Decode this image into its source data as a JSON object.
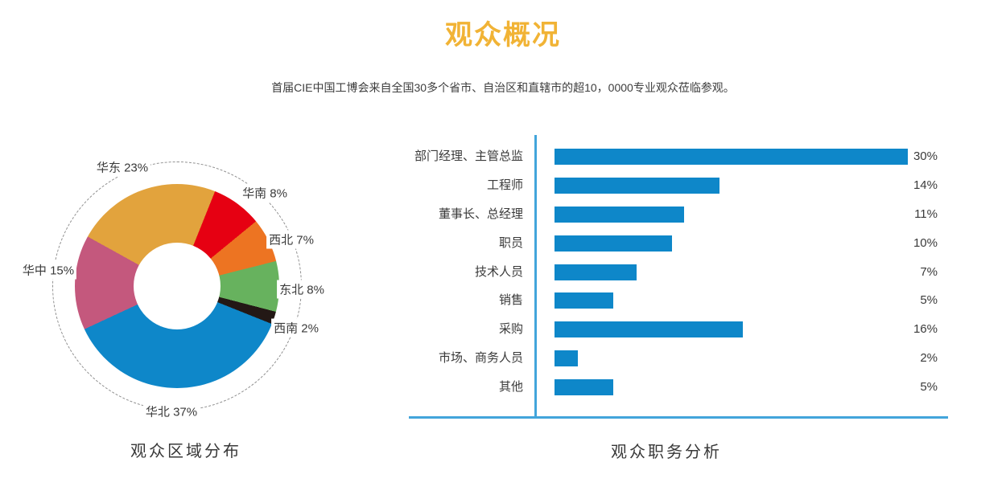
{
  "page": {
    "title": "观众概况",
    "subtitle": "首届CIE中国工博会来自全国30多个省市、自治区和直辖市的超10，0000专业观众莅临参观。",
    "accent_color": "#F1B335"
  },
  "chart_data": [
    {
      "type": "pie",
      "donut": true,
      "title": "观众区域分布",
      "unit": "%",
      "legend_position": "around",
      "start_angle_deg": -61,
      "segments": [
        {
          "label": "华东",
          "value": 23,
          "color": "#E2A33D"
        },
        {
          "label": "华南",
          "value": 8,
          "color": "#E60012"
        },
        {
          "label": "西北",
          "value": 7,
          "color": "#ED7422"
        },
        {
          "label": "东北",
          "value": 8,
          "color": "#67B25E"
        },
        {
          "label": "西南",
          "value": 2,
          "color": "#231815"
        },
        {
          "label": "华北",
          "value": 37,
          "color": "#0E87C9"
        },
        {
          "label": "华中",
          "value": 15,
          "color": "#C4587D"
        }
      ]
    },
    {
      "type": "bar",
      "orientation": "horizontal",
      "title": "观众职务分析",
      "unit": "%",
      "bar_color": "#0E87C9",
      "axis_color": "#42A5DB",
      "grid": false,
      "xlim": [
        0,
        33
      ],
      "categories": [
        "部门经理、主管总监",
        "工程师",
        "董事长、总经理",
        "职员",
        "技术人员",
        "销售",
        "采购",
        "市场、商务人员",
        "其他"
      ],
      "values": [
        30,
        14,
        11,
        10,
        7,
        5,
        16,
        2,
        5
      ]
    }
  ]
}
